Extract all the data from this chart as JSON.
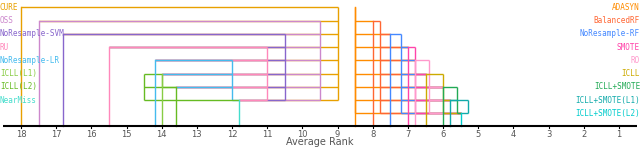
{
  "xlabel": "Average Rank",
  "xlim_left": 18.5,
  "xlim_right": 0.5,
  "ylim_top": 9.5,
  "ylim_bottom": -1.2,
  "tick_positions": [
    18,
    17,
    16,
    15,
    14,
    13,
    12,
    11,
    10,
    9,
    8,
    7,
    6,
    5,
    4,
    3,
    2,
    1
  ],
  "left_methods": [
    {
      "name": "CURE",
      "rank": 18.0,
      "color": "#E8A000",
      "row": 9
    },
    {
      "name": "OSS",
      "rank": 17.5,
      "color": "#CC88CC",
      "row": 8
    },
    {
      "name": "NoResample-SVM",
      "rank": 16.8,
      "color": "#8866CC",
      "row": 7
    },
    {
      "name": "RU",
      "rank": 15.5,
      "color": "#FF88BB",
      "row": 6
    },
    {
      "name": "NoResample-LR",
      "rank": 14.2,
      "color": "#44BBEE",
      "row": 5
    },
    {
      "name": "ICLL(L1)",
      "rank": 14.0,
      "color": "#88CC44",
      "row": 4
    },
    {
      "name": "ICLL(L2)",
      "rank": 13.6,
      "color": "#66BB22",
      "row": 3
    },
    {
      "name": "NearMiss",
      "rank": 11.8,
      "color": "#44DDCC",
      "row": 2
    }
  ],
  "right_methods": [
    {
      "name": "ADASYN",
      "rank": 8.5,
      "color": "#FF8C00",
      "row": 9
    },
    {
      "name": "BalancedRF",
      "rank": 8.0,
      "color": "#FF6633",
      "row": 8
    },
    {
      "name": "NoResample-RF",
      "rank": 7.5,
      "color": "#4488FF",
      "row": 7
    },
    {
      "name": "SMOTE",
      "rank": 7.0,
      "color": "#FF44AA",
      "row": 6
    },
    {
      "name": "RO",
      "rank": 6.8,
      "color": "#FF99CC",
      "row": 5
    },
    {
      "name": "ICLL",
      "rank": 6.5,
      "color": "#CCAA00",
      "row": 4
    },
    {
      "name": "ICLL+SMOTE",
      "rank": 6.0,
      "color": "#22AA55",
      "row": 3
    },
    {
      "name": "ICLL+SMOTE(L1)",
      "rank": 5.8,
      "color": "#11AAAA",
      "row": 2
    },
    {
      "name": "ICLL+SMOTE(L2)",
      "rank": 5.5,
      "color": "#00CCCC",
      "row": 1
    }
  ],
  "left_brackets": [
    {
      "color": "#E8A000",
      "x": 9.0,
      "rows": [
        9,
        8,
        7,
        6,
        5,
        4,
        3,
        2
      ]
    },
    {
      "color": "#CC88CC",
      "x": 9.5,
      "rows": [
        8,
        7,
        6,
        5,
        4,
        3,
        2
      ]
    },
    {
      "color": "#8866CC",
      "x": 10.5,
      "rows": [
        7,
        6,
        5,
        4,
        3,
        2
      ]
    },
    {
      "color": "#FF88BB",
      "x": 11.0,
      "rows": [
        6,
        5,
        4,
        3,
        2
      ]
    },
    {
      "color": "#44BBEE",
      "x": 12.0,
      "rows": [
        5,
        4,
        3,
        2
      ]
    },
    {
      "color": "#88CC44",
      "x": 14.0,
      "rows": [
        4,
        3
      ]
    },
    {
      "color": "#66BB22",
      "x": 14.5,
      "rows": [
        4,
        3,
        2
      ]
    }
  ],
  "right_brackets": [
    {
      "color": "#FF8C00",
      "x": 8.5,
      "rows": [
        9,
        8,
        7,
        6,
        5,
        4,
        3,
        2,
        1
      ]
    },
    {
      "color": "#FF6633",
      "x": 7.8,
      "rows": [
        8,
        7,
        6,
        5,
        4,
        3,
        2,
        1
      ]
    },
    {
      "color": "#4488FF",
      "x": 7.2,
      "rows": [
        7,
        6,
        5,
        4,
        3,
        2,
        1
      ]
    },
    {
      "color": "#FF44AA",
      "x": 6.8,
      "rows": [
        6,
        5,
        4,
        3,
        2,
        1
      ]
    },
    {
      "color": "#FF99CC",
      "x": 6.4,
      "rows": [
        5,
        4,
        3,
        2,
        1
      ]
    },
    {
      "color": "#CCAA00",
      "x": 6.0,
      "rows": [
        4,
        3,
        2,
        1
      ]
    },
    {
      "color": "#22AA55",
      "x": 5.6,
      "rows": [
        3,
        2,
        1
      ]
    },
    {
      "color": "#11AAAA",
      "x": 5.3,
      "rows": [
        2,
        1
      ]
    }
  ]
}
